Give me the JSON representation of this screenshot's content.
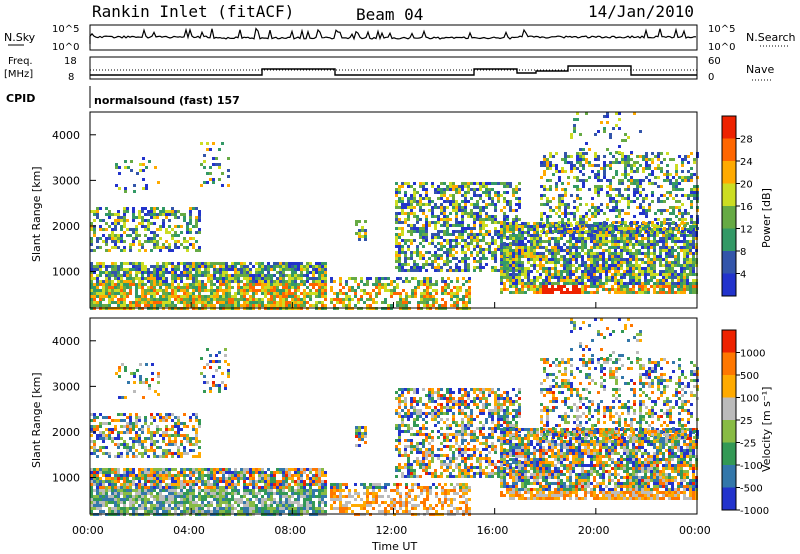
{
  "header": {
    "station": "Rankin Inlet (fitACF)",
    "beam": "Beam 04",
    "date": "14/Jan/2010"
  },
  "top_panels": {
    "nsky_label": "N.Sky",
    "nsky_ticks": [
      "10^5",
      "10^0"
    ],
    "nsearch_label": "N.Search",
    "nsearch_ticks": [
      "10^5",
      "10^0"
    ],
    "freq_label": "Freq.",
    "freq_unit": "[MHz]",
    "freq_ticks": [
      "18",
      "8"
    ],
    "nave_label": "Nave",
    "nave_ticks": [
      "60",
      "0"
    ],
    "cpid_label": "CPID",
    "cpid_text": "normalsound (fast) 157"
  },
  "chart_data": [
    {
      "type": "heatmap",
      "name": "power",
      "ylabel": "Slant Range [km]",
      "yticks": [
        "1000",
        "2000",
        "3000",
        "4000"
      ],
      "ylim": [
        200,
        4500
      ],
      "colorbar_label": "Power [dB]",
      "colorbar_ticks": [
        "28",
        "24",
        "20",
        "16",
        "12",
        "8",
        "4"
      ],
      "colors": [
        "#2233cc",
        "#3355aa",
        "#339966",
        "#66aa44",
        "#ccdd22",
        "#ffaa00",
        "#ff6600",
        "#ee2200"
      ]
    },
    {
      "type": "heatmap",
      "name": "velocity",
      "ylabel": "Slant Range [km]",
      "yticks": [
        "1000",
        "2000",
        "3000",
        "4000"
      ],
      "ylim": [
        200,
        4500
      ],
      "colorbar_label": "Velocity [m s⁻¹]",
      "colorbar_ticks": [
        "1000",
        "500",
        "100",
        "25",
        "-25",
        "-100",
        "-500",
        "-1000"
      ],
      "colors": [
        "#2233cc",
        "#3377aa",
        "#339955",
        "#88bb44",
        "#bbbbbb",
        "#ffaa00",
        "#ff7700",
        "#ee2200"
      ]
    }
  ],
  "x_axis": {
    "label": "Time UT",
    "ticks": [
      "00:00",
      "04:00",
      "08:00",
      "12:00",
      "16:00",
      "20:00",
      "00:00"
    ]
  }
}
